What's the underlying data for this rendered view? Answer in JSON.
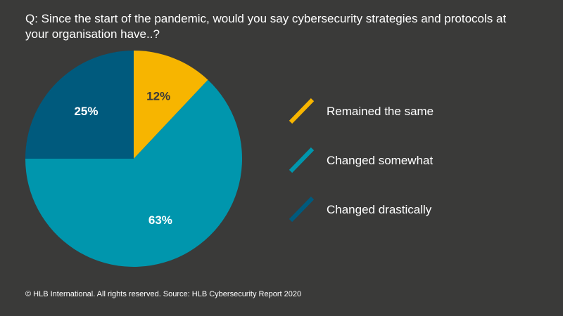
{
  "title": "Q: Since the start of the pandemic, would you say cybersecurity strategies and protocols at your organisation have..?",
  "footer": "© HLB International. All rights reserved. Source: HLB Cybersecurity Report 2020",
  "chart_data": {
    "type": "pie",
    "slices": [
      {
        "label": "Remained the same",
        "value": 12,
        "display": "12%",
        "color": "#f7b500",
        "text_color": "#3a3a39"
      },
      {
        "label": "Changed somewhat",
        "value": 63,
        "display": "63%",
        "color": "#0096ad",
        "text_color": "#ffffff"
      },
      {
        "label": "Changed drastically",
        "value": 25,
        "display": "25%",
        "color": "#005a7d",
        "text_color": "#ffffff"
      }
    ],
    "start": "12 o'clock",
    "direction": "clockwise",
    "legend_position": "right"
  }
}
